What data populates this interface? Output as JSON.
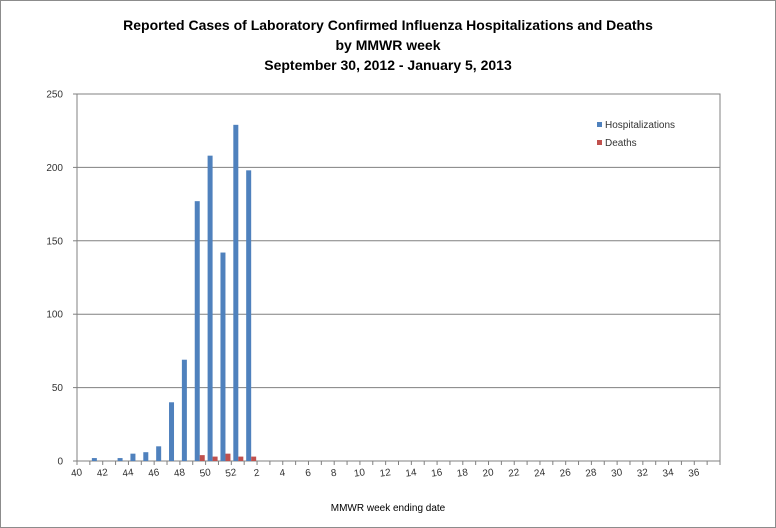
{
  "chart_data": {
    "type": "bar",
    "title_lines": [
      "Reported Cases of Laboratory Confirmed Influenza Hospitalizations and Deaths",
      "by MMWR week",
      "September 30, 2012 - January 5, 2013"
    ],
    "xlabel": "MMWR week ending date",
    "ylabel": "",
    "ylim": [
      0,
      250
    ],
    "yticks": [
      0,
      50,
      100,
      150,
      200,
      250
    ],
    "grid": true,
    "legend_position": "top-right",
    "categories": [
      40,
      41,
      42,
      43,
      44,
      45,
      46,
      47,
      48,
      49,
      50,
      51,
      52,
      1,
      2,
      3,
      4,
      5,
      6,
      7,
      8,
      9,
      10,
      11,
      12,
      13,
      14,
      15,
      16,
      17,
      18,
      19,
      20,
      21,
      22,
      23,
      24,
      25,
      26,
      27,
      28,
      29,
      30,
      31,
      32,
      33,
      34,
      35,
      36,
      37
    ],
    "category_tick_labels": [
      "40",
      "",
      "42",
      "",
      "44",
      "",
      "46",
      "",
      "48",
      "",
      "50",
      "",
      "52",
      "",
      "2",
      "",
      "4",
      "",
      "6",
      "",
      "8",
      "",
      "10",
      "",
      "12",
      "",
      "14",
      "",
      "16",
      "",
      "18",
      "",
      "20",
      "",
      "22",
      "",
      "24",
      "",
      "26",
      "",
      "28",
      "",
      "30",
      "",
      "32",
      "",
      "34",
      "",
      "36",
      ""
    ],
    "series": [
      {
        "name": "Hospitalizations",
        "color": "#4f81bd",
        "values": [
          0,
          2,
          0,
          2,
          5,
          6,
          10,
          40,
          69,
          177,
          208,
          142,
          229,
          198,
          null,
          null,
          null,
          null,
          null,
          null,
          null,
          null,
          null,
          null,
          null,
          null,
          null,
          null,
          null,
          null,
          null,
          null,
          null,
          null,
          null,
          null,
          null,
          null,
          null,
          null,
          null,
          null,
          null,
          null,
          null,
          null,
          null,
          null,
          null,
          null
        ]
      },
      {
        "name": "Deaths",
        "color": "#c0504d",
        "values": [
          0,
          0,
          0,
          0,
          0,
          0,
          0,
          0,
          0,
          4,
          3,
          5,
          3,
          3,
          null,
          null,
          null,
          null,
          null,
          null,
          null,
          null,
          null,
          null,
          null,
          null,
          null,
          null,
          null,
          null,
          null,
          null,
          null,
          null,
          null,
          null,
          null,
          null,
          null,
          null,
          null,
          null,
          null,
          null,
          null,
          null,
          null,
          null,
          null,
          null
        ]
      }
    ]
  }
}
